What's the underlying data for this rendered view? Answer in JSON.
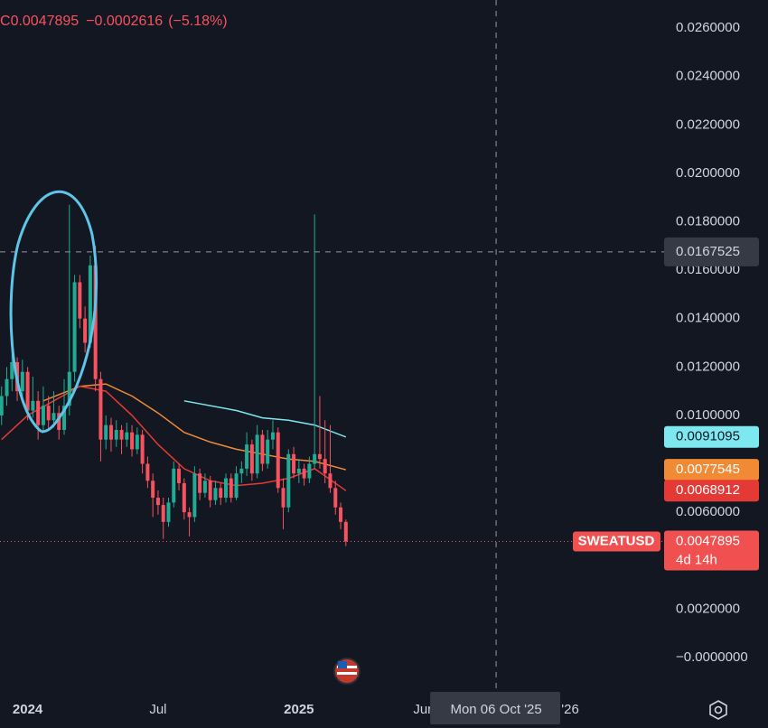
{
  "chart_data": {
    "type": "candlestick",
    "header": {
      "label": "C",
      "change": "−0.0002616",
      "change_pct": "(−5.18%)"
    },
    "symbol": "SWEATUSD",
    "countdown": "4d 14h",
    "up_color": "#22ab94",
    "down_color": "#f7525f",
    "xlim": [
      -0.3,
      127
    ],
    "ylim": [
      -0.00157,
      0.02716
    ],
    "xticks": [
      {
        "value": 5,
        "label": "2024"
      },
      {
        "value": 30,
        "label": "Jul"
      },
      {
        "value": 57,
        "label": "2025"
      },
      {
        "value": 81,
        "label": "Jun"
      },
      {
        "value": 109,
        "label": "'26"
      }
    ],
    "yticks": [
      {
        "value": 0.026,
        "label": "0.0260000"
      },
      {
        "value": 0.024,
        "label": "0.0240000"
      },
      {
        "value": 0.022,
        "label": "0.0220000"
      },
      {
        "value": 0.02,
        "label": "0.0200000"
      },
      {
        "value": 0.018,
        "label": "0.0180000"
      },
      {
        "value": 0.016,
        "label": "0.0160000"
      },
      {
        "value": 0.014,
        "label": "0.0140000"
      },
      {
        "value": 0.012,
        "label": "0.0120000"
      },
      {
        "value": 0.01,
        "label": "0.0100000"
      },
      {
        "value": 0.006,
        "label": "0.0060000"
      },
      {
        "value": 0.002,
        "label": "0.0020000"
      },
      {
        "value": 0,
        "label": "−0.0000000"
      }
    ],
    "crosshair": {
      "x": 94.8,
      "x_label": "Mon 06 Oct '25",
      "y": 0.0167525
    },
    "candles": {
      "open": [
        0.01,
        0.0108,
        0.0115,
        0.0122,
        0.011,
        0.0118,
        0.0102,
        0.0106,
        0.0096,
        0.0104,
        0.0098,
        0.0101,
        0.0094,
        0.0104,
        0.0118,
        0.0155,
        0.014,
        0.013,
        0.0162,
        0.0115,
        0.009,
        0.0096,
        0.009,
        0.0094,
        0.009,
        0.0093,
        0.0086,
        0.0092,
        0.008,
        0.0073,
        0.0066,
        0.0063,
        0.0056,
        0.0064,
        0.0078,
        0.0072,
        0.006,
        0.0058,
        0.0076,
        0.0068,
        0.0073,
        0.0065,
        0.007,
        0.0066,
        0.0074,
        0.0066,
        0.0076,
        0.0078,
        0.0088,
        0.0076,
        0.0092,
        0.008,
        0.009,
        0.0093,
        0.007,
        0.0062,
        0.0084,
        0.0076,
        0.0078,
        0.0074,
        0.008,
        0.0084,
        0.0082,
        0.0076,
        0.007,
        0.0062,
        0.0056
      ],
      "high": [
        0.0112,
        0.012,
        0.0128,
        0.0124,
        0.0123,
        0.012,
        0.0116,
        0.011,
        0.0112,
        0.0108,
        0.011,
        0.0104,
        0.0115,
        0.0187,
        0.0158,
        0.0158,
        0.0145,
        0.0166,
        0.017,
        0.0118,
        0.01,
        0.0099,
        0.0098,
        0.0096,
        0.0097,
        0.0096,
        0.0095,
        0.0094,
        0.0083,
        0.0076,
        0.0069,
        0.0066,
        0.0066,
        0.0081,
        0.008,
        0.0074,
        0.0062,
        0.0079,
        0.0078,
        0.0076,
        0.0075,
        0.0073,
        0.0072,
        0.0076,
        0.0076,
        0.0079,
        0.0081,
        0.0093,
        0.009,
        0.0096,
        0.0094,
        0.0094,
        0.0098,
        0.0095,
        0.0074,
        0.0086,
        0.0087,
        0.0082,
        0.008,
        0.0083,
        0.0183,
        0.0108,
        0.0098,
        0.0096,
        0.0073,
        0.0064,
        0.0057
      ],
      "low": [
        0.0096,
        0.0104,
        0.011,
        0.0106,
        0.0105,
        0.0098,
        0.0099,
        0.009,
        0.0093,
        0.0094,
        0.0095,
        0.009,
        0.0092,
        0.01,
        0.0114,
        0.0136,
        0.0126,
        0.0128,
        0.011,
        0.0081,
        0.0086,
        0.0085,
        0.0087,
        0.0084,
        0.0087,
        0.0083,
        0.0084,
        0.0076,
        0.007,
        0.0058,
        0.0059,
        0.0049,
        0.0054,
        0.0062,
        0.0069,
        0.0057,
        0.005,
        0.0056,
        0.0065,
        0.0066,
        0.0062,
        0.0063,
        0.0063,
        0.0064,
        0.0064,
        0.0065,
        0.0072,
        0.0075,
        0.0073,
        0.0074,
        0.0077,
        0.0078,
        0.0086,
        0.0068,
        0.0053,
        0.006,
        0.0074,
        0.0072,
        0.0071,
        0.0072,
        0.0078,
        0.0078,
        0.0072,
        0.0068,
        0.0059,
        0.0053,
        0.0046
      ],
      "close": [
        0.0108,
        0.0115,
        0.0122,
        0.011,
        0.0118,
        0.0102,
        0.0106,
        0.0096,
        0.0104,
        0.0098,
        0.0101,
        0.0094,
        0.0104,
        0.0118,
        0.0155,
        0.014,
        0.013,
        0.0162,
        0.0115,
        0.009,
        0.0096,
        0.009,
        0.0094,
        0.009,
        0.0093,
        0.0086,
        0.0092,
        0.008,
        0.0073,
        0.0066,
        0.0063,
        0.0056,
        0.0064,
        0.0078,
        0.0072,
        0.006,
        0.0058,
        0.0076,
        0.0068,
        0.0073,
        0.0065,
        0.007,
        0.0066,
        0.0074,
        0.0066,
        0.0076,
        0.0078,
        0.0088,
        0.0076,
        0.0092,
        0.008,
        0.009,
        0.0093,
        0.007,
        0.0062,
        0.0084,
        0.0076,
        0.0078,
        0.0074,
        0.008,
        0.0084,
        0.0082,
        0.0076,
        0.007,
        0.0062,
        0.0056,
        0.0047895
      ]
    },
    "series": [
      {
        "color": "#7ee8f0",
        "text_color": "#131722",
        "x": [
          35,
          45,
          50,
          55,
          60,
          66
        ],
        "values": [
          0.0106,
          0.0102,
          0.0099,
          0.0098,
          0.0096,
          0.0091095
        ]
      },
      {
        "color": "#f08a35",
        "text_color": "#ffffff",
        "x": [
          8,
          15,
          20,
          25,
          30,
          35,
          40,
          45,
          50,
          55,
          60,
          66
        ],
        "values": [
          0.0106,
          0.0112,
          0.0113,
          0.0108,
          0.0101,
          0.0093,
          0.0089,
          0.0086,
          0.0084,
          0.0082,
          0.0081,
          0.0077545
        ]
      },
      {
        "color": "#e53935",
        "text_color": "#ffffff",
        "x": [
          0,
          5,
          10,
          15,
          20,
          25,
          30,
          35,
          40,
          45,
          50,
          55,
          60,
          66
        ],
        "values": [
          0.009,
          0.01,
          0.0106,
          0.0112,
          0.011,
          0.01,
          0.0088,
          0.0078,
          0.0073,
          0.0071,
          0.0072,
          0.0074,
          0.0078,
          0.0068912
        ]
      }
    ]
  }
}
